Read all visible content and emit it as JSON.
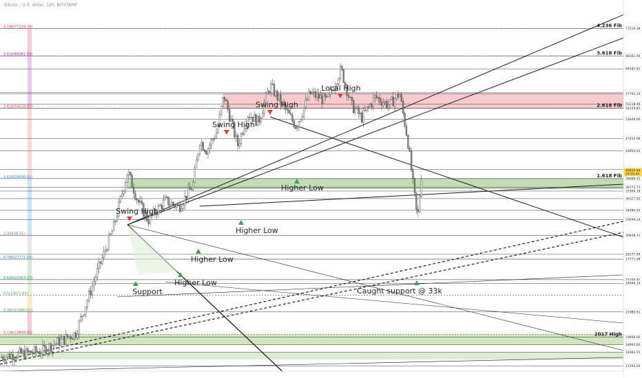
{
  "header": {
    "symbol_line": "Bitcoin / U.S. dollar, 12h, BITSTAMP"
  },
  "chart_data": {
    "type": "candlestick",
    "y_scale": "log",
    "ylim": [
      16900,
      85000
    ],
    "fib_right_labels": [
      {
        "label": "4.236 Fib",
        "price": 77219
      },
      {
        "label": "3.618 Fib",
        "price": 68361
      },
      {
        "label": "2.618 Fib",
        "price": 54228
      },
      {
        "label": "1.618 Fib",
        "price": 39696
      },
      {
        "label": "2017 High",
        "price": 19666
      }
    ],
    "fib_left_labels": [
      {
        "label": "4.236(77219.38)",
        "price": 77219,
        "color": "#f23645"
      },
      {
        "label": "3.618(68361.69)",
        "price": 68361,
        "color": "#9c27b0"
      },
      {
        "label": "2.618(54228.85)",
        "price": 54228,
        "color": "#f23645"
      },
      {
        "label": "1.618(39696.01)",
        "price": 39696,
        "color": "#2196f3"
      },
      {
        "label": "1(30838.31)",
        "price": 30838,
        "color": "#787b86"
      },
      {
        "label": "0.786(27771.09)",
        "price": 27771,
        "color": "#2196f3"
      },
      {
        "label": "0.618(25363.17)",
        "price": 25363,
        "color": "#089981"
      },
      {
        "label": "0.5(23671.89)",
        "price": 23671,
        "color": "#4caf50"
      },
      {
        "label": "0.382(21980.61)",
        "price": 21980,
        "color": "#4caf50"
      },
      {
        "label": "0.236(19888.02)",
        "price": 19888,
        "color": "#f23645"
      }
    ],
    "price_levels": [
      77219.38,
      68361.69,
      64581.81,
      58109.96,
      57795.2,
      55218.46,
      54228.85,
      51649.0,
      47410.08,
      44854.63,
      41337.96,
      39696.01,
      38173.73,
      37560.18,
      36327.5,
      34484.5,
      33099.24,
      30838.31,
      28377.94,
      27771.08,
      25356.45,
      24946.19,
      21980.61,
      19666.0,
      19666.0,
      18993.0,
      18383.55,
      17295.0
    ],
    "current_price": {
      "value": "40830.94",
      "countdown": "10:50:44"
    },
    "resistance_zone": [
      54228,
      57795
    ],
    "support_zone": [
      38000,
      39696
    ],
    "annotations": [
      {
        "text": "Local High",
        "kind": "high",
        "price": 64581
      },
      {
        "text": "Swing High",
        "kind": "high",
        "price": 57795
      },
      {
        "text": "Swing High",
        "kind": "high",
        "price": 60500
      },
      {
        "text": "Swing High",
        "kind": "high",
        "price": 41300
      },
      {
        "text": "Higher Low",
        "kind": "low",
        "price": 50000
      },
      {
        "text": "Higher Low",
        "kind": "low",
        "price": 43000
      },
      {
        "text": "Higher Low",
        "kind": "low",
        "price": 36700
      },
      {
        "text": "Higher Low",
        "kind": "low",
        "price": 32500
      },
      {
        "text": "Support",
        "kind": "low",
        "price": 31900
      },
      {
        "text": "Caught support @ 33k",
        "kind": "low",
        "price": 30838
      }
    ]
  }
}
